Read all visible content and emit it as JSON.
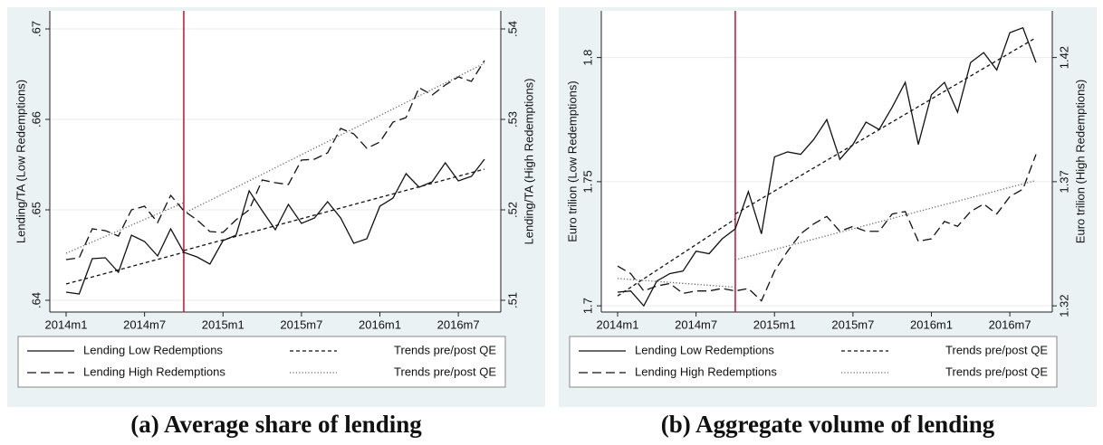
{
  "chart_data": [
    {
      "type": "line",
      "caption": "(a) Average share of lending",
      "categories": [
        "2014m1",
        null,
        null,
        null,
        null,
        null,
        "2014m7",
        null,
        null,
        null,
        null,
        null,
        "2015m1",
        null,
        null,
        null,
        null,
        null,
        "2015m7",
        null,
        null,
        null,
        null,
        null,
        "2016m1",
        null,
        null,
        null,
        null,
        null,
        "2016m7",
        null,
        null
      ],
      "ylabel": "Lending/TA (Low Redemptions)",
      "y2label": "Lending/TA (High Redemptions)",
      "ylim": [
        0.6387,
        0.672
      ],
      "yticks": [
        {
          "value": 0.64,
          "label": ".64"
        },
        {
          "value": 0.65,
          "label": ".65"
        },
        {
          "value": 0.66,
          "label": ".66"
        },
        {
          "value": 0.67,
          "label": ".67"
        }
      ],
      "y2lim": [
        0.5087,
        0.542
      ],
      "y2ticks": [
        {
          "value": 0.51,
          "label": ".51"
        },
        {
          "value": 0.52,
          "label": ".52"
        },
        {
          "value": 0.53,
          "label": ".53"
        },
        {
          "value": 0.54,
          "label": ".54"
        }
      ],
      "grid": true,
      "vline_x": 9,
      "vline_color": "#c8102e",
      "series": [
        {
          "name": "Lending Low Redemptions",
          "color": "#111111",
          "style": "solid",
          "values": [
            0.6409,
            0.6407,
            0.6446,
            0.6447,
            0.6431,
            0.6472,
            0.6465,
            0.6449,
            0.6479,
            0.6453,
            0.6448,
            0.644,
            0.6466,
            0.6472,
            0.6521,
            0.6499,
            0.6478,
            0.6506,
            0.6485,
            0.6491,
            0.6509,
            0.6491,
            0.6463,
            0.6468,
            0.6504,
            0.6513,
            0.654,
            0.6525,
            0.6531,
            0.6552,
            0.6532,
            0.6537,
            0.6556
          ]
        },
        {
          "name": "Lending High Redemptions",
          "color": "#111111",
          "style": "longdash",
          "axis": "y2",
          "values": [
            0.5145,
            0.5147,
            0.5179,
            0.5177,
            0.5171,
            0.52,
            0.5204,
            0.5186,
            0.5216,
            0.5199,
            0.5189,
            0.5176,
            0.5175,
            0.5189,
            0.52,
            0.5233,
            0.523,
            0.5228,
            0.5255,
            0.5256,
            0.5263,
            0.529,
            0.5284,
            0.5268,
            0.5275,
            0.5297,
            0.5302,
            0.5335,
            0.5327,
            0.5338,
            0.5347,
            0.5342,
            0.5365
          ]
        },
        {
          "name": "Trends pre/post QE",
          "color": "#111111",
          "style": "shortdash",
          "x": [
            0,
            9,
            null,
            9,
            32
          ],
          "values": [
            0.6418,
            0.6453,
            null,
            0.6455,
            0.6545
          ]
        },
        {
          "name": "Trends pre/post QE",
          "color": "#666666",
          "style": "dotted",
          "axis": "y2",
          "x": [
            0,
            9,
            null,
            9,
            32
          ],
          "values": [
            0.5152,
            0.5208,
            null,
            0.5196,
            0.5362
          ]
        }
      ]
    },
    {
      "type": "line",
      "caption": "(b) Aggregate volume of lending",
      "categories": [
        "2014m1",
        null,
        null,
        null,
        null,
        null,
        "2014m7",
        null,
        null,
        null,
        null,
        null,
        "2015m1",
        null,
        null,
        null,
        null,
        null,
        "2015m7",
        null,
        null,
        null,
        null,
        null,
        "2016m1",
        null,
        null,
        null,
        null,
        null,
        "2016m7",
        null,
        null
      ],
      "ylabel": "Euro trilion (Low Redemptions)",
      "y2label": "Euro trilion (High Redemptions)",
      "ylim": [
        1.6975,
        1.8188
      ],
      "yticks": [
        1.7,
        1.75,
        1.8
      ],
      "y2lim": [
        1.3175,
        1.4388
      ],
      "y2ticks": [
        1.32,
        1.37,
        1.42
      ],
      "grid": true,
      "vline_x": 9,
      "vline_color": "#c8102e",
      "series": [
        {
          "name": "Lending Low Redemptions",
          "color": "#111111",
          "style": "solid",
          "values": [
            1.7055,
            1.706,
            1.7,
            1.71,
            1.713,
            1.714,
            1.722,
            1.721,
            1.727,
            1.731,
            1.746,
            1.729,
            1.76,
            1.762,
            1.761,
            1.767,
            1.775,
            1.759,
            1.765,
            1.774,
            1.771,
            1.78,
            1.79,
            1.765,
            1.785,
            1.79,
            1.778,
            1.798,
            1.802,
            1.795,
            1.81,
            1.812,
            1.798
          ]
        },
        {
          "name": "Lending High Redemptions",
          "color": "#111111",
          "style": "longdash",
          "axis": "y2",
          "values": [
            1.336,
            1.333,
            1.326,
            1.328,
            1.329,
            1.325,
            1.326,
            1.326,
            1.327,
            1.326,
            1.327,
            1.322,
            1.334,
            1.342,
            1.349,
            1.353,
            1.356,
            1.35,
            1.352,
            1.35,
            1.35,
            1.357,
            1.358,
            1.346,
            1.347,
            1.354,
            1.352,
            1.358,
            1.361,
            1.357,
            1.364,
            1.367,
            1.381
          ]
        },
        {
          "name": "Trends pre/post QE",
          "color": "#111111",
          "style": "shortdash",
          "x": [
            0,
            9,
            null,
            9,
            32
          ],
          "values": [
            1.704,
            1.735,
            null,
            1.737,
            1.808
          ]
        },
        {
          "name": "Trends pre/post QE",
          "color": "#666666",
          "style": "dotted",
          "axis": "y2",
          "x": [
            0,
            9,
            null,
            9,
            32
          ],
          "values": [
            1.331,
            1.3275,
            null,
            1.3385,
            1.3705
          ]
        }
      ]
    }
  ]
}
